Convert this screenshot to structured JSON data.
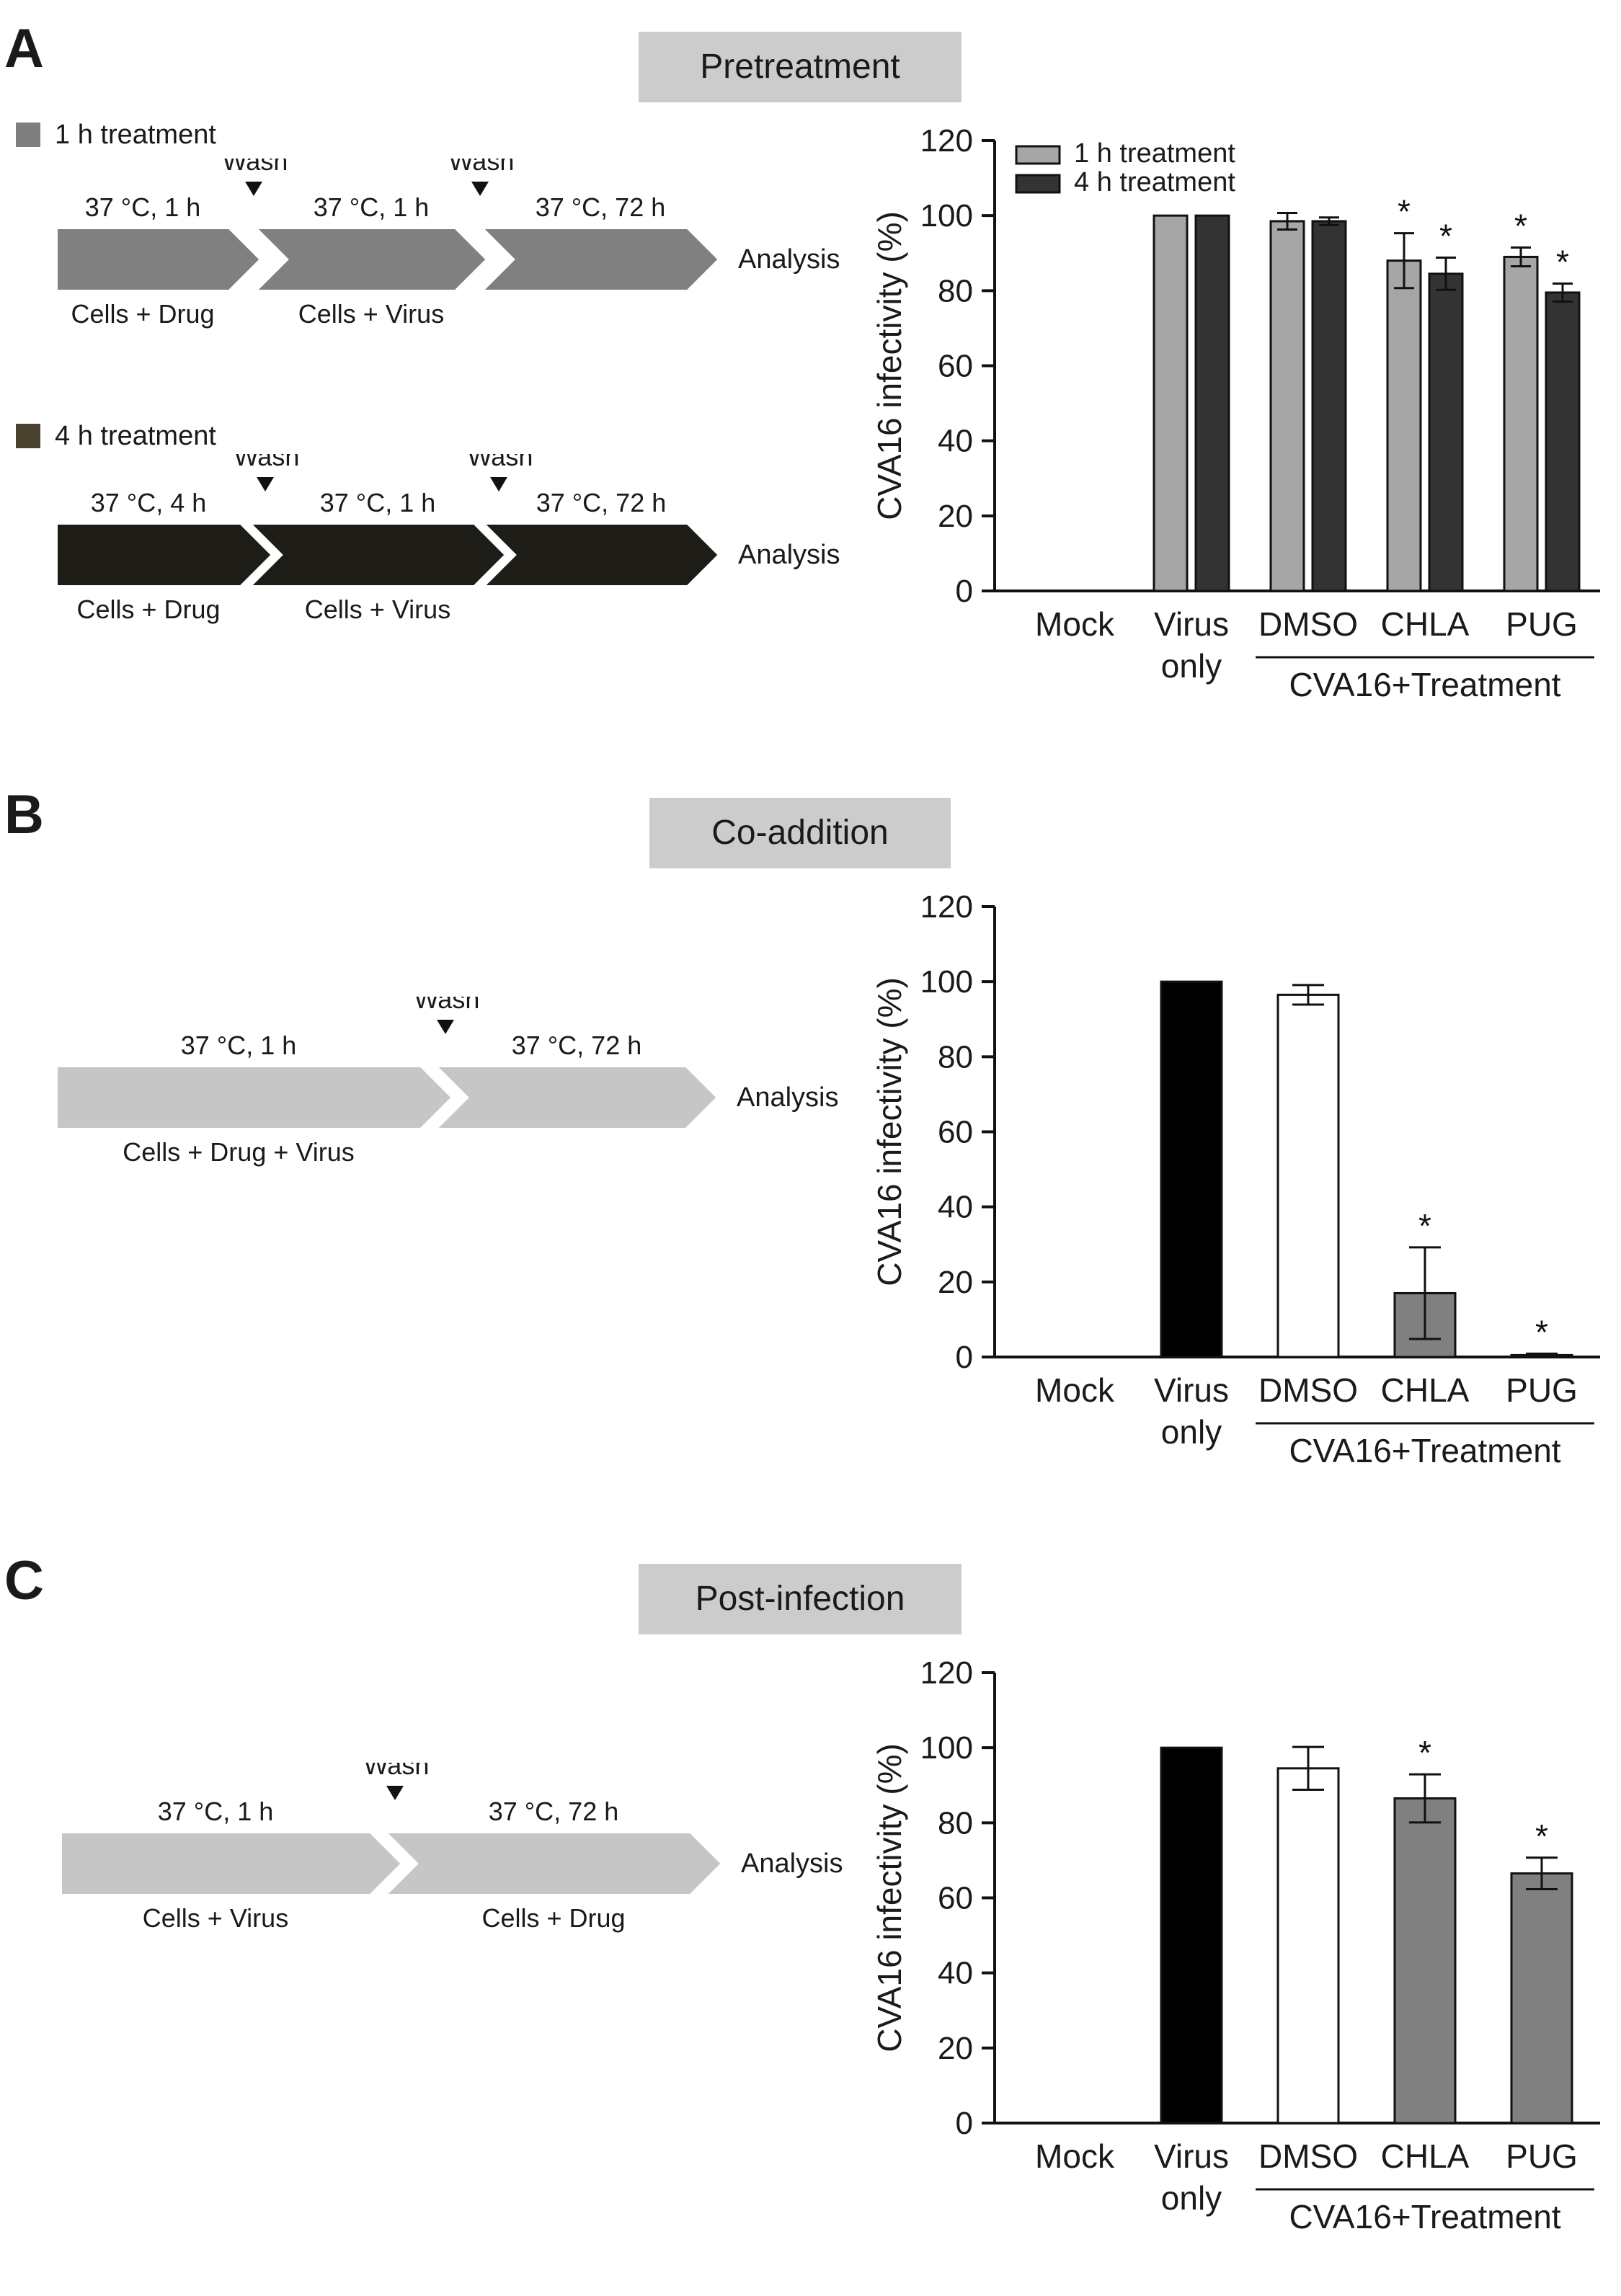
{
  "panels": [
    {
      "letter": "A",
      "title": "Pretreatment",
      "protocol_legend": [
        {
          "label": "1 h treatment",
          "color": "#7f7f7f"
        },
        {
          "label": "4 h treatment",
          "color": "#4a4330"
        }
      ],
      "protocols": [
        {
          "arrow_color": "#808080",
          "wash_label": "Wash",
          "segments": [
            {
              "top": "37 °C, 1 h",
              "bottom": "Cells + Drug"
            },
            {
              "top": "37 °C, 1 h",
              "bottom": "Cells + Virus"
            },
            {
              "top": "37 °C, 72 h",
              "bottom": ""
            }
          ],
          "end_label": "Analysis"
        },
        {
          "arrow_color": "#1e1c17",
          "wash_label": "Wash",
          "segments": [
            {
              "top": "37 °C, 4 h",
              "bottom": "Cells + Drug"
            },
            {
              "top": "37 °C, 1 h",
              "bottom": "Cells + Virus"
            },
            {
              "top": "37 °C, 72 h",
              "bottom": ""
            }
          ],
          "end_label": "Analysis"
        }
      ]
    },
    {
      "letter": "B",
      "title": "Co-addition",
      "protocols": [
        {
          "arrow_color": "#c6c6c6",
          "wash_label": "Wash",
          "segments": [
            {
              "top": "37 °C, 1 h",
              "bottom": "Cells + Drug + Virus"
            },
            {
              "top": "37 °C, 72 h",
              "bottom": ""
            }
          ],
          "end_label": "Analysis"
        }
      ]
    },
    {
      "letter": "C",
      "title": "Post-infection",
      "protocols": [
        {
          "arrow_color": "#c6c6c6",
          "wash_label": "Wash",
          "segments": [
            {
              "top": "37 °C, 1 h",
              "bottom": "Cells + Virus"
            },
            {
              "top": "37 °C, 72 h",
              "bottom": "Cells + Drug"
            }
          ],
          "end_label": "Analysis"
        }
      ]
    }
  ],
  "chart_data": [
    {
      "type": "bar",
      "ylabel": "CVA16 infectivity (%)",
      "ylim": [
        0,
        120
      ],
      "yticks": [
        "0",
        "20",
        "40",
        "60",
        "80",
        "100",
        "120"
      ],
      "categories": [
        "Mock",
        "Virus only",
        "DMSO",
        "CHLA",
        "PUG"
      ],
      "group_label": "CVA16+Treatment",
      "legend": "top-left",
      "series": [
        {
          "name": "1 h treatment",
          "color": "#a6a6a6",
          "values": [
            0,
            100,
            98.5,
            88,
            89
          ],
          "errors": [
            0,
            0,
            2.2,
            7.3,
            2.5
          ],
          "significant": [
            false,
            false,
            false,
            true,
            true
          ]
        },
        {
          "name": "4 h treatment",
          "color": "#333333",
          "values": [
            0,
            100,
            98.5,
            84.5,
            79.5
          ],
          "errors": [
            0,
            0,
            1.0,
            4.3,
            2.4
          ],
          "significant": [
            false,
            false,
            false,
            true,
            true
          ]
        }
      ]
    },
    {
      "type": "bar",
      "ylabel": "CVA16 infectivity (%)",
      "ylim": [
        0,
        120
      ],
      "yticks": [
        "0",
        "20",
        "40",
        "60",
        "80",
        "100",
        "120"
      ],
      "categories": [
        "Mock",
        "Virus only",
        "DMSO",
        "CHLA",
        "PUG"
      ],
      "group_label": "CVA16+Treatment",
      "values": [
        0,
        100,
        96.5,
        17,
        0.5
      ],
      "errors": [
        0,
        0,
        2.6,
        12.2,
        0.4
      ],
      "colors": [
        "#000000",
        "#000000",
        "#ffffff",
        "#808080",
        "#808080"
      ],
      "significant": [
        false,
        false,
        false,
        true,
        true
      ]
    },
    {
      "type": "bar",
      "ylabel": "CVA16 infectivity (%)",
      "ylim": [
        0,
        120
      ],
      "yticks": [
        "0",
        "20",
        "40",
        "60",
        "80",
        "100",
        "120"
      ],
      "categories": [
        "Mock",
        "Virus only",
        "DMSO",
        "CHLA",
        "PUG"
      ],
      "group_label": "CVA16+Treatment",
      "values": [
        0,
        100,
        94.5,
        86.5,
        66.5
      ],
      "errors": [
        0,
        0,
        5.7,
        6.4,
        4.2
      ],
      "colors": [
        "#000000",
        "#000000",
        "#ffffff",
        "#808080",
        "#808080"
      ],
      "significant": [
        false,
        false,
        false,
        true,
        true
      ]
    }
  ],
  "significance_marker": "*"
}
